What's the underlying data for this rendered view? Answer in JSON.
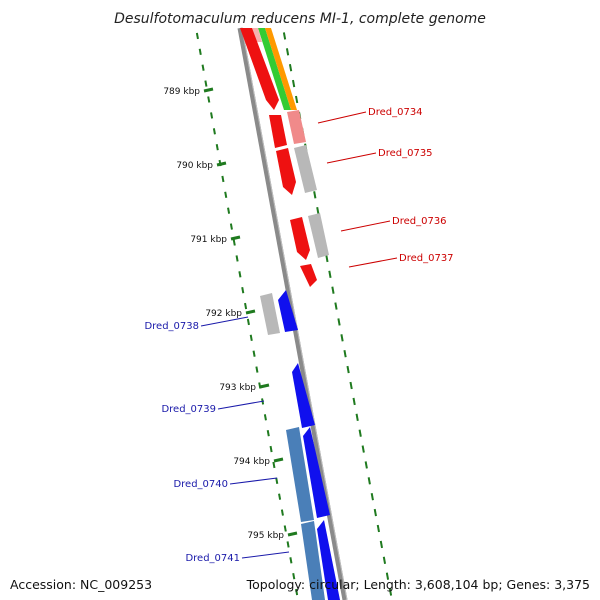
{
  "title": "Desulfotomaculum reducens MI-1, complete genome",
  "accession_text": "Accession: NC_009253",
  "topology_text": "Topology: circular; Length: 3,608,104 bp; Genes: 3,375",
  "colors": {
    "backbone": "#8a8a8a",
    "tick": "#1f7a1f",
    "red_gene": "#ee1111",
    "pink_gene": "#f08a8a",
    "grey_gene": "#b8b8b8",
    "blue_gene": "#1010ee",
    "steelblue_gene": "#4a7fb8",
    "green_track": "#33cc33",
    "orange_track": "#ff9900",
    "red_label": "#cc0000",
    "blue_label": "#1a1aaa"
  },
  "ticks": [
    "789 kbp",
    "790 kbp",
    "791 kbp",
    "792 kbp",
    "793 kbp",
    "794 kbp",
    "795 kbp"
  ],
  "genes_right": [
    "Dred_0734",
    "Dred_0735",
    "Dred_0736",
    "Dred_0737"
  ],
  "genes_left": [
    "Dred_0738",
    "Dred_0739",
    "Dred_0740",
    "Dred_0741"
  ]
}
